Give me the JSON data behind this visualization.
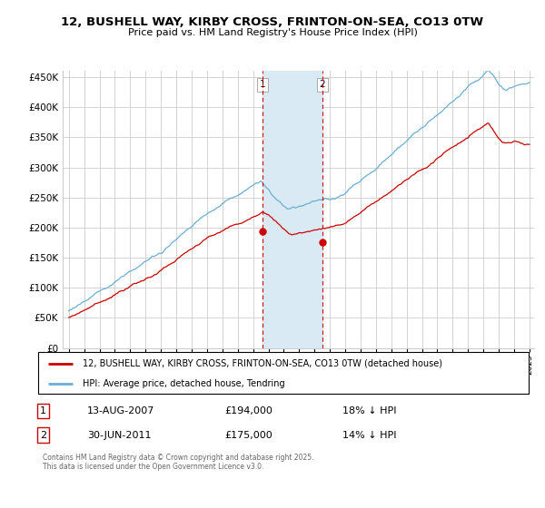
{
  "title": "12, BUSHELL WAY, KIRBY CROSS, FRINTON-ON-SEA, CO13 0TW",
  "subtitle": "Price paid vs. HM Land Registry's House Price Index (HPI)",
  "legend_label1": "12, BUSHELL WAY, KIRBY CROSS, FRINTON-ON-SEA, CO13 0TW (detached house)",
  "legend_label2": "HPI: Average price, detached house, Tendring",
  "sale1_date": "13-AUG-2007",
  "sale1_price": "£194,000",
  "sale1_hpi": "18% ↓ HPI",
  "sale2_date": "30-JUN-2011",
  "sale2_price": "£175,000",
  "sale2_hpi": "14% ↓ HPI",
  "footer": "Contains HM Land Registry data © Crown copyright and database right 2025.\nThis data is licensed under the Open Government Licence v3.0.",
  "hpi_color": "#6baed6",
  "price_color": "#cc0000",
  "highlight_color": "#daeaf5",
  "background_color": "#ffffff",
  "ylim": [
    0,
    460000
  ],
  "yticks": [
    0,
    50000,
    100000,
    150000,
    200000,
    250000,
    300000,
    350000,
    400000,
    450000
  ],
  "sale1_x": 2007.62,
  "sale1_y": 194000,
  "sale2_x": 2011.5,
  "sale2_y": 175000,
  "highlight_x1": 2007.62,
  "highlight_x2": 2011.5,
  "xmin": 1995,
  "xmax": 2025
}
